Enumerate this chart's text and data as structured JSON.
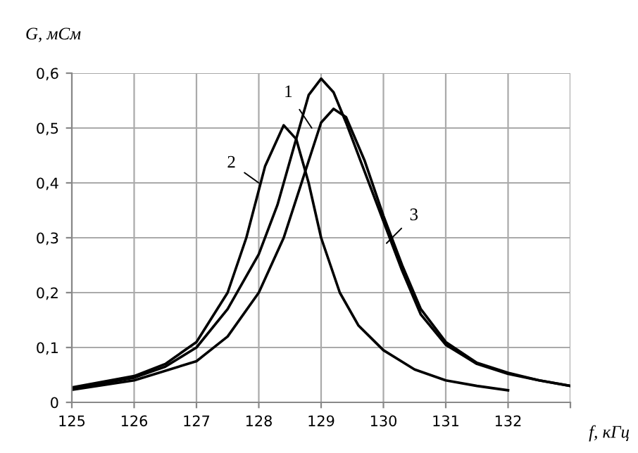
{
  "chart_data": {
    "type": "line",
    "xlabel": "f, кГц",
    "ylabel": "G, мСм",
    "xlim": [
      125,
      133
    ],
    "ylim": [
      0,
      0.6
    ],
    "xticks": [
      125,
      126,
      127,
      128,
      129,
      130,
      131,
      132,
      {
        "value": 133,
        "label": null
      }
    ],
    "yticks": [
      0,
      {
        "value": 0.1,
        "label": "0,1"
      },
      {
        "value": 0.2,
        "label": "0,2"
      },
      {
        "value": 0.3,
        "label": "0,3"
      },
      {
        "value": 0.4,
        "label": "0,4"
      },
      {
        "value": 0.5,
        "label": "0,5"
      },
      {
        "value": 0.6,
        "label": "0,6"
      }
    ],
    "grid": true,
    "marker": "none",
    "line_style": "solid",
    "legend": false,
    "series": [
      {
        "color": "#000000",
        "x": [
          125,
          126,
          126.5,
          127,
          127.5,
          128,
          128.3,
          128.6,
          128.8,
          129,
          129.2,
          129.4,
          129.7,
          130,
          130.3,
          130.6,
          131,
          131.5,
          132,
          132.5,
          133
        ],
        "values": [
          0.025,
          0.045,
          0.065,
          0.1,
          0.17,
          0.27,
          0.36,
          0.48,
          0.56,
          0.59,
          0.565,
          0.51,
          0.42,
          0.33,
          0.24,
          0.16,
          0.105,
          0.07,
          0.052,
          0.04,
          0.03
        ]
      },
      {
        "color": "#000000",
        "x": [
          125,
          126,
          126.5,
          127,
          127.5,
          127.8,
          128.1,
          128.4,
          128.6,
          128.8,
          129,
          129.3,
          129.6,
          130,
          130.5,
          131,
          131.5,
          132
        ],
        "values": [
          0.027,
          0.048,
          0.07,
          0.11,
          0.2,
          0.3,
          0.43,
          0.505,
          0.48,
          0.4,
          0.3,
          0.2,
          0.14,
          0.095,
          0.06,
          0.04,
          0.03,
          0.022
        ]
      },
      {
        "color": "#000000",
        "x": [
          125,
          126,
          127,
          127.5,
          128,
          128.4,
          128.8,
          129,
          129.2,
          129.4,
          129.7,
          130,
          130.3,
          130.6,
          131,
          131.5,
          132,
          132.5,
          133
        ],
        "values": [
          0.023,
          0.04,
          0.075,
          0.12,
          0.2,
          0.3,
          0.44,
          0.51,
          0.535,
          0.52,
          0.44,
          0.34,
          0.25,
          0.17,
          0.11,
          0.072,
          0.054,
          0.04,
          0.03
        ]
      }
    ],
    "annotations": [
      {
        "text": "1",
        "x": 128.85,
        "y": 0.5
      },
      {
        "text": "2",
        "x": 128.0,
        "y": 0.4
      },
      {
        "text": "3",
        "x": 130.05,
        "y": 0.29
      }
    ]
  }
}
